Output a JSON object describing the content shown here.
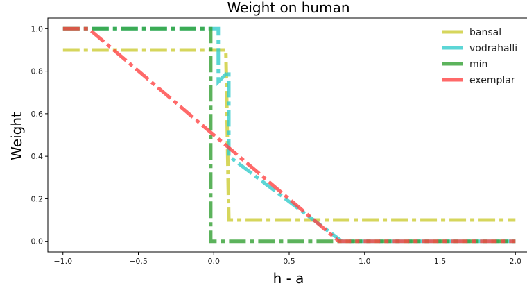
{
  "chart_data": {
    "type": "line",
    "title": "Weight on human",
    "xlabel": "h - a",
    "ylabel": "Weight",
    "xlim": [
      -1.1,
      2.1
    ],
    "ylim": [
      -0.05,
      1.05
    ],
    "xticks": [
      -1.0,
      -0.5,
      0.0,
      0.5,
      1.0,
      1.5,
      2.0
    ],
    "xtick_labels": [
      "−1.0",
      "−0.5",
      "0.0",
      "0.5",
      "1.0",
      "1.5",
      "2.0"
    ],
    "yticks": [
      0.0,
      0.2,
      0.4,
      0.6,
      0.8,
      1.0
    ],
    "ytick_labels": [
      "0.0",
      "0.2",
      "0.4",
      "0.6",
      "0.8",
      "1.0"
    ],
    "grid": false,
    "legend_position": "top-right",
    "series": [
      {
        "name": "bansal",
        "color": "#cccc33",
        "line_style": "dashdot",
        "points": [
          [
            -1.0,
            0.9
          ],
          [
            0.08,
            0.9
          ],
          [
            0.08,
            0.9
          ],
          [
            0.1,
            0.1
          ],
          [
            2.0,
            0.1
          ]
        ]
      },
      {
        "name": "vodrahalli",
        "color": "#33cccc",
        "line_style": "dashdot",
        "points": [
          [
            -1.0,
            1.0
          ],
          [
            0.03,
            1.0
          ],
          [
            0.03,
            0.75
          ],
          [
            0.1,
            0.8
          ],
          [
            0.1,
            0.4
          ],
          [
            0.85,
            0.0
          ],
          [
            2.0,
            0.0
          ]
        ]
      },
      {
        "name": "min",
        "color": "#33a033",
        "line_style": "dashdot",
        "points": [
          [
            -1.0,
            1.0
          ],
          [
            -0.02,
            1.0
          ],
          [
            -0.02,
            0.0
          ],
          [
            2.0,
            0.0
          ]
        ]
      },
      {
        "name": "exemplar",
        "color": "#ff4444",
        "line_style": "dashdot",
        "points": [
          [
            -1.0,
            1.0
          ],
          [
            -0.83,
            1.0
          ],
          [
            0.0,
            0.5
          ],
          [
            0.83,
            0.0
          ],
          [
            2.0,
            0.0
          ]
        ]
      }
    ]
  }
}
